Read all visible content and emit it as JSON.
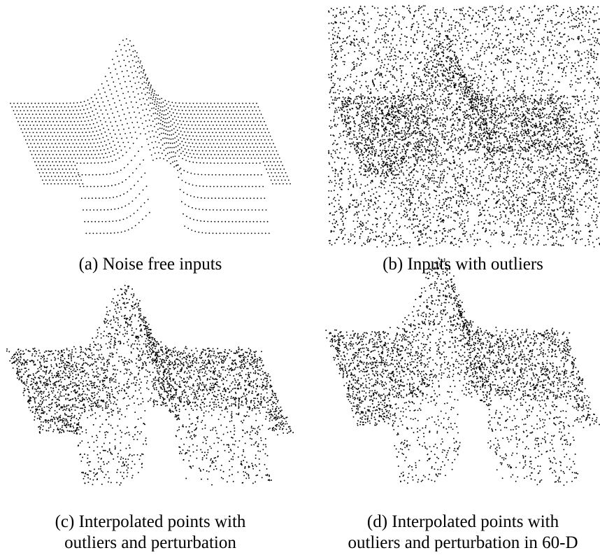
{
  "panels": [
    {
      "caption": [
        "(a) Noise free inputs"
      ]
    },
    {
      "caption": [
        "(b) Inputs with outliers"
      ]
    },
    {
      "caption": [
        "(c) Interpolated points with",
        "outliers and perturbation"
      ]
    },
    {
      "caption": [
        "(d) Interpolated points with",
        "outliers and perturbation in 60-D"
      ]
    }
  ]
}
